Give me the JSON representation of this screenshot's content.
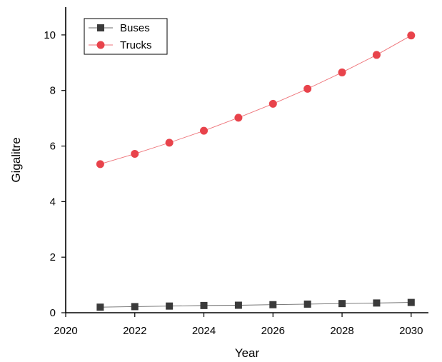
{
  "chart_data": {
    "type": "line",
    "title": "",
    "xlabel": "Year",
    "ylabel": "Gigalitre",
    "xlim": [
      2020,
      2030.5
    ],
    "ylim": [
      0,
      11
    ],
    "x_ticks": [
      2020,
      2022,
      2024,
      2026,
      2028,
      2030
    ],
    "y_ticks": [
      0,
      2,
      4,
      6,
      8,
      10
    ],
    "grid": false,
    "legend_position": "top-left",
    "x": [
      2021,
      2022,
      2023,
      2024,
      2025,
      2026,
      2027,
      2028,
      2029,
      2030
    ],
    "series": [
      {
        "name": "Buses",
        "marker": "square",
        "color": "#3a3a3a",
        "values": [
          0.2,
          0.22,
          0.24,
          0.26,
          0.27,
          0.29,
          0.31,
          0.33,
          0.35,
          0.37
        ]
      },
      {
        "name": "Trucks",
        "marker": "circle",
        "color": "#e8434b",
        "values": [
          5.35,
          5.72,
          6.12,
          6.55,
          7.02,
          7.52,
          8.06,
          8.65,
          9.28,
          9.98
        ]
      }
    ]
  }
}
